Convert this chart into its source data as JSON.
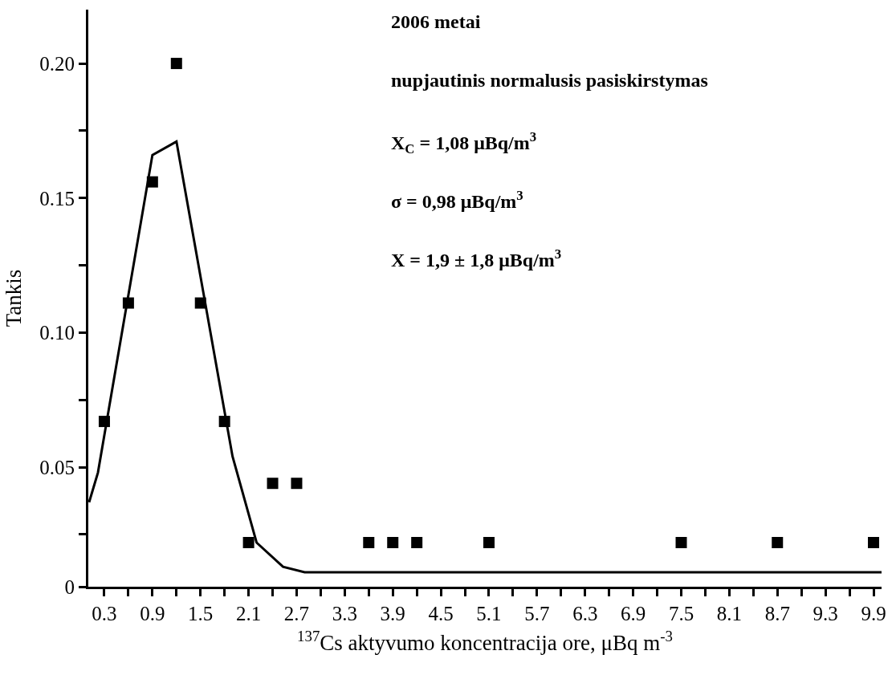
{
  "chart_data": {
    "type": "scatter",
    "xlabel": "$^{137}$Cs aktyvumo koncentracija ore, μBq m$^{-3}$",
    "ylabel": "Tankis",
    "annotations": [
      "2006 metai",
      "nupjautinis normalusis pasiskirstymas",
      "X$_{C}$ = 1,08 μBq/m$^{3}$",
      "σ = 0,98 μBq/m$^{3}$",
      "X = 1,9 ± 1,8 μBq/m$^{3}$"
    ],
    "series": [
      {
        "color": "#000000",
        "marker": "square",
        "x": [
          0.3,
          0.6,
          0.9,
          1.2,
          1.5,
          1.8,
          2.1,
          2.4,
          2.7,
          3.6,
          3.9,
          4.2,
          5.1,
          7.5,
          8.7,
          9.9
        ],
        "values": [
          0.067,
          0.111,
          0.156,
          0.2,
          0.111,
          0.067,
          0.022,
          0.044,
          0.044,
          0.022,
          0.022,
          0.022,
          0.022,
          0.022,
          0.022,
          0.022
        ]
      },
      {
        "type": "line",
        "color": "#000000",
        "marker": "none",
        "line_style": "solid",
        "x": [
          0.11,
          0.22,
          0.9,
          1.2,
          1.9,
          2.2,
          2.53,
          2.8,
          10.0
        ],
        "values": [
          0.037,
          0.048,
          0.166,
          0.171,
          0.054,
          0.022,
          0.013,
          0.011,
          0.011
        ]
      }
    ],
    "xlim": [
      0.1,
      10.0
    ],
    "xticks": [
      0.3,
      {
        "value": 0.6,
        "label": null
      },
      0.9,
      {
        "value": 1.2,
        "label": null
      },
      1.5,
      {
        "value": 1.8,
        "label": null
      },
      2.1,
      {
        "value": 2.4,
        "label": null
      },
      2.7,
      {
        "value": 3.0,
        "label": null
      },
      3.3,
      {
        "value": 3.6,
        "label": null
      },
      3.9,
      {
        "value": 4.2,
        "label": null
      },
      4.5,
      {
        "value": 4.8,
        "label": null
      },
      5.1,
      {
        "value": 5.4,
        "label": null
      },
      5.7,
      {
        "value": 6.0,
        "label": null
      },
      6.3,
      {
        "value": 6.6,
        "label": null
      },
      6.9,
      {
        "value": 7.2,
        "label": null
      },
      7.5,
      {
        "value": 7.8,
        "label": null
      },
      8.1,
      {
        "value": 8.4,
        "label": null
      },
      8.7,
      {
        "value": 9.0,
        "label": null
      },
      9.3,
      {
        "value": 9.6,
        "label": null
      },
      9.9
    ],
    "ylim": [
      0.0056,
      0.22
    ],
    "yticks": [
      {
        "value": 0.0056,
        "label": "0"
      },
      {
        "value": 0.025,
        "label": null
      },
      0.05,
      {
        "value": 0.075,
        "label": null
      },
      {
        "value": 0.1,
        "label": "0.10"
      },
      {
        "value": 0.125,
        "label": null
      },
      0.15,
      {
        "value": 0.175,
        "label": null
      },
      {
        "value": 0.2,
        "label": "0.20"
      }
    ]
  }
}
